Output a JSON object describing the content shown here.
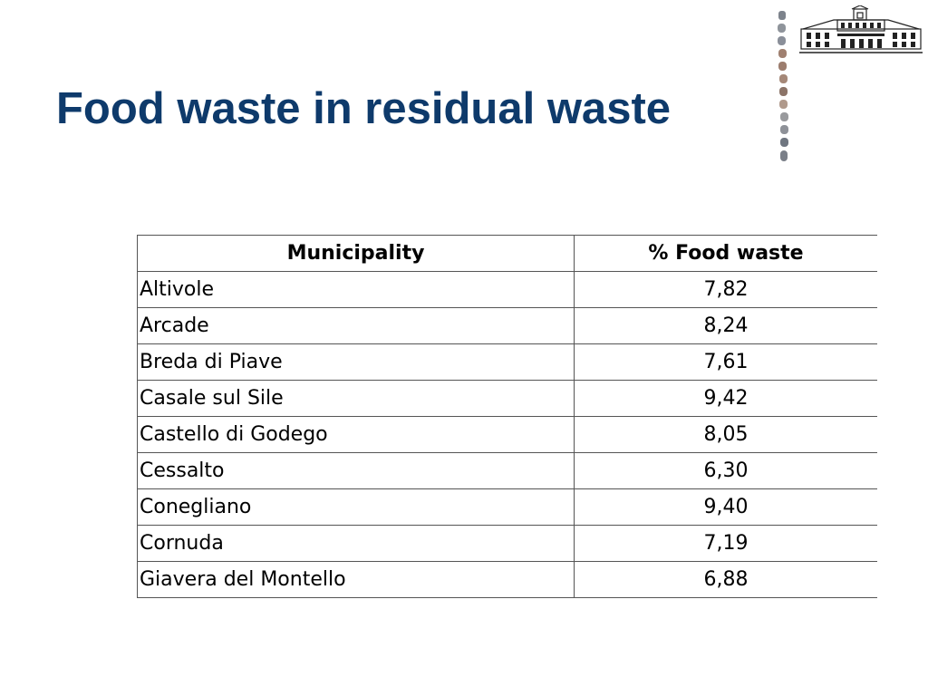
{
  "slide": {
    "title": "Food waste in residual waste"
  },
  "table": {
    "headers": [
      "Municipality",
      "% Food waste"
    ],
    "rows": [
      [
        "Altivole",
        "7,82"
      ],
      [
        "Arcade",
        "8,24"
      ],
      [
        "Breda di Piave",
        "7,61"
      ],
      [
        "Casale sul Sile",
        "9,42"
      ],
      [
        "Castello di Godego",
        "8,05"
      ],
      [
        "Cessalto",
        "6,30"
      ],
      [
        "Conegliano",
        "9,40"
      ],
      [
        "Cornuda",
        "7,19"
      ],
      [
        "Giavera del Montello",
        "6,88"
      ]
    ]
  },
  "decor": {
    "title_color": "#0e3a6b",
    "bead_colors": [
      "#8a8f99",
      "#a08070",
      "#6f7680",
      "#9a9a9a"
    ],
    "logo_icon": "building-logo-icon",
    "bead_icon": "bead-chain-icon"
  }
}
